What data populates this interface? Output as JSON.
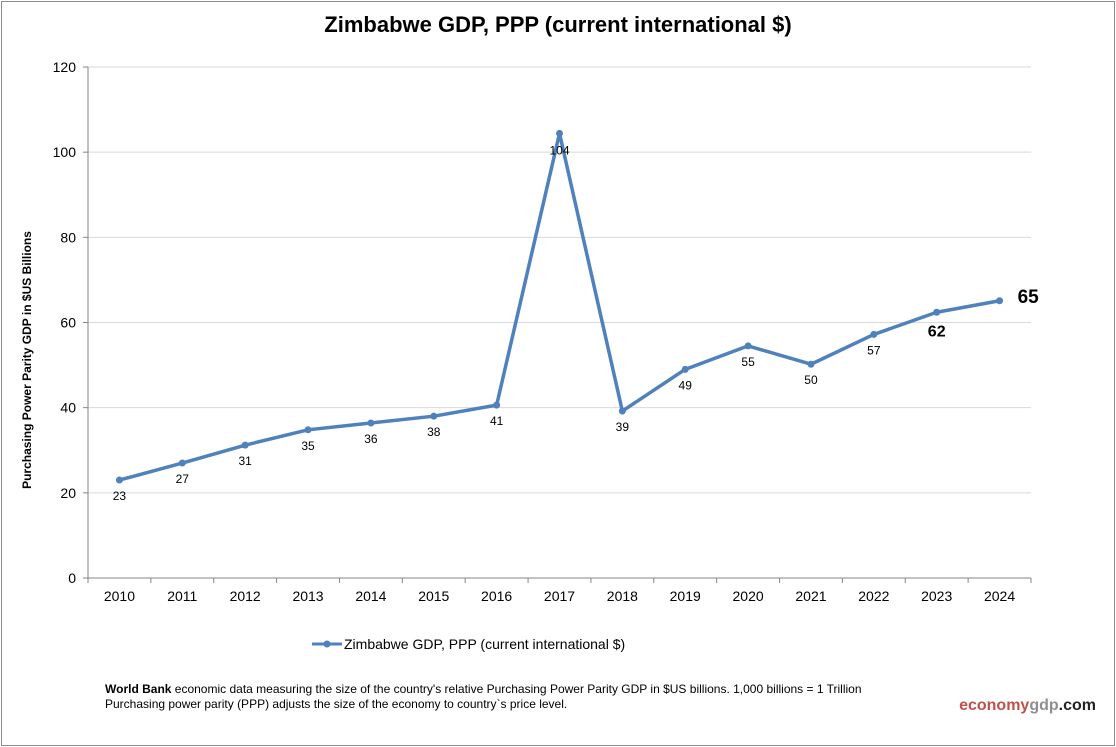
{
  "chart_data": {
    "type": "line",
    "title": "Zimbabwe GDP, PPP (current international $)",
    "ylabel": "Purchasing Power Parity GDP in $US Billions",
    "xlabel": "",
    "categories": [
      "2010",
      "2011",
      "2012",
      "2013",
      "2014",
      "2015",
      "2016",
      "2017",
      "2018",
      "2019",
      "2020",
      "2021",
      "2022",
      "2023",
      "2024"
    ],
    "series": [
      {
        "name": "Zimbabwe GDP, PPP (current international $)",
        "values": [
          23.0,
          27.0,
          31.2,
          34.8,
          36.4,
          38.0,
          40.6,
          104.4,
          39.2,
          49.0,
          54.5,
          50.2,
          57.2,
          62.4,
          65.1
        ],
        "labels": [
          "23",
          "27",
          "31",
          "35",
          "36",
          "38",
          "41",
          "104",
          "39",
          "49",
          "55",
          "50",
          "57",
          "62",
          "65"
        ],
        "color": "#4f81bd"
      }
    ],
    "ylim": [
      0,
      120
    ],
    "yticks": [
      0,
      20,
      40,
      60,
      80,
      100,
      120
    ],
    "grid": true,
    "legend": "bottom"
  },
  "footer": {
    "source_bold": "World Bank",
    "line1": " economic data  measuring the size of the country's relative  Purchasing Power Parity GDP in $US billions. 1,000 billions = 1 Trillion",
    "line2": "Purchasing power parity (PPP) adjusts the size of the economy to country`s price level.",
    "brand_part1": "economy",
    "brand_part2": "gdp",
    "brand_part3": ".com",
    "brand_colors": [
      "#c0504d",
      "#8f8f8f",
      "#222222"
    ]
  }
}
